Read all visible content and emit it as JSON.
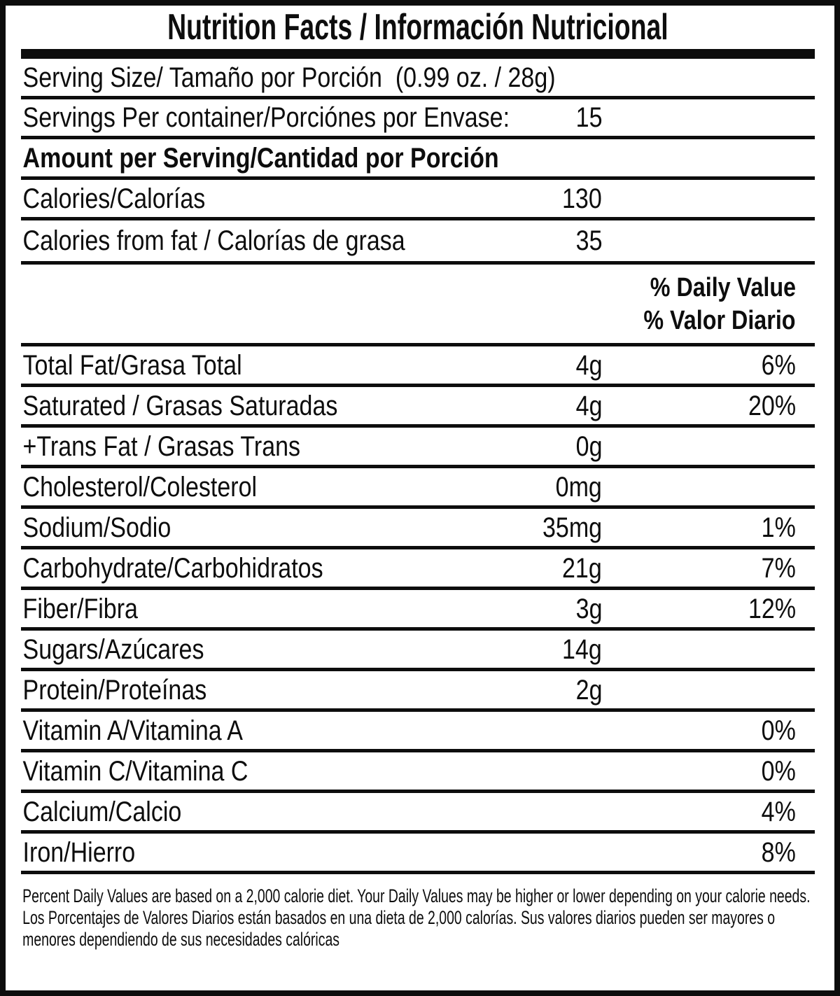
{
  "colors": {
    "ink": "#0d0d0d",
    "background": "#ffffff"
  },
  "label": {
    "title": "Nutrition Facts / Información Nutricional",
    "serving_size": "Serving Size/ Tamaño por Porción  (0.99 oz. / 28g)",
    "servings_per_container": {
      "label": "Servings Per container/Porciónes por Envase:",
      "value": "15"
    },
    "amount_per_serving": "Amount per Serving/Cantidad por Porción",
    "calories": {
      "label": "Calories/Calorías",
      "value": "130"
    },
    "calories_from_fat": {
      "label": "Calories from fat / Calorías de grasa",
      "value": "35"
    },
    "daily_value_header": [
      "% Daily Value",
      "% Valor Diario"
    ],
    "nutrients": [
      {
        "label": "Total Fat/Grasa Total",
        "amount": "4g",
        "dv": "6%"
      },
      {
        "label": "Saturated / Grasas Saturadas",
        "amount": "4g",
        "dv": "20%"
      },
      {
        "label": "+Trans Fat / Grasas Trans",
        "amount": "0g",
        "dv": ""
      },
      {
        "label": "Cholesterol/Colesterol",
        "amount": "0mg",
        "dv": ""
      },
      {
        "label": "Sodium/Sodio",
        "amount": "35mg",
        "dv": "1%"
      },
      {
        "label": "Carbohydrate/Carbohidratos",
        "amount": "21g",
        "dv": "7%"
      },
      {
        "label": "Fiber/Fibra",
        "amount": "3g",
        "dv": "12%"
      },
      {
        "label": "Sugars/Azúcares",
        "amount": "14g",
        "dv": ""
      },
      {
        "label": "Protein/Proteínas",
        "amount": "2g",
        "dv": ""
      },
      {
        "label": "Vitamin A/Vitamina A",
        "amount": "",
        "dv": "0%"
      },
      {
        "label": "Vitamin C/Vitamina C",
        "amount": "",
        "dv": "0%"
      },
      {
        "label": "Calcium/Calcio",
        "amount": "",
        "dv": "4%"
      },
      {
        "label": "Iron/Hierro",
        "amount": "",
        "dv": "8%"
      }
    ],
    "footnote_en": "Percent Daily Values are based on a 2,000 calorie diet. Your Daily Values may be higher or lower depending on your calorie needs.",
    "footnote_es": "Los Porcentajes de Valores Diarios están basados en una dieta de 2,000 calorías. Sus valores diarios pueden ser mayores o menores dependiendo de sus necesidades calóricas"
  }
}
